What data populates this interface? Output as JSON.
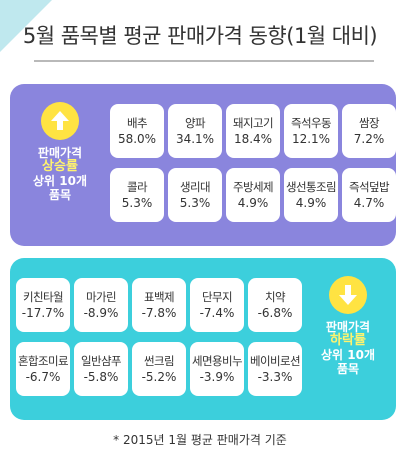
{
  "title": "5월 품목별 평균 판매가격 동향(1월 대비)",
  "footnote": "* 2015년 1월 평균 판매가격 기준",
  "colors": {
    "up_panel": "#8a85dd",
    "down_panel": "#3ccfdc",
    "badge": "#ffe342",
    "highlight": "#fff36e"
  },
  "up_badge": {
    "icon": "arrow-up-icon",
    "line1": "판매가격",
    "line2": "상승률",
    "line3": "상위 10개",
    "line4": "품목"
  },
  "down_badge": {
    "icon": "arrow-down-icon",
    "line1": "판매가격",
    "line2": "하락률",
    "line3": "상위 10개",
    "line4": "품목"
  },
  "chart_data": [
    {
      "type": "table",
      "group": "판매가격 상승률 상위 10개 품목",
      "categories": [
        "배추",
        "양파",
        "돼지고기",
        "즉석우동",
        "쌈장",
        "콜라",
        "생리대",
        "주방세제",
        "생선통조림",
        "즉석덮밥"
      ],
      "values": [
        "58.0%",
        "34.1%",
        "18.4%",
        "12.1%",
        "7.2%",
        "5.3%",
        "5.3%",
        "4.9%",
        "4.9%",
        "4.7%"
      ]
    },
    {
      "type": "table",
      "group": "판매가격 하락률 상위 10개 품목",
      "categories": [
        "키친타월",
        "마가린",
        "표백제",
        "단무지",
        "치약",
        "혼합조미료",
        "일반샴푸",
        "썬크림",
        "세면용비누",
        "베이비로션"
      ],
      "values": [
        "-17.7%",
        "-8.9%",
        "-7.8%",
        "-7.4%",
        "-6.8%",
        "-6.7%",
        "-5.8%",
        "-5.2%",
        "-3.9%",
        "-3.3%"
      ]
    }
  ]
}
